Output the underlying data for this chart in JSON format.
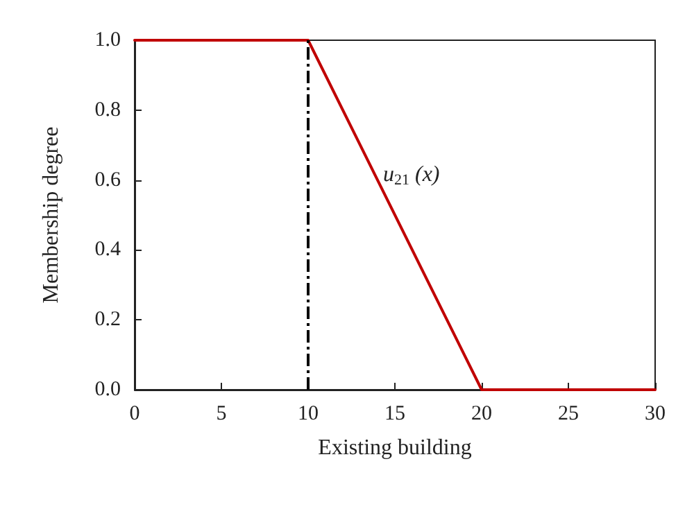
{
  "chart_data": {
    "type": "line",
    "xlabel": "Existing building",
    "ylabel": "Membership degree",
    "x": [
      0,
      10,
      20,
      30
    ],
    "series": [
      {
        "color": "#c00000",
        "values": [
          1,
          1,
          0,
          0
        ]
      }
    ],
    "xlim": [
      0,
      30
    ],
    "xticks": [
      0,
      5,
      10,
      15,
      20,
      25,
      30
    ],
    "ylim": [
      0,
      1
    ],
    "yticks": [
      {
        "value": 0,
        "label": "0.0"
      },
      {
        "value": 0.2,
        "label": "0.2"
      },
      {
        "value": 0.4,
        "label": "0.4"
      },
      {
        "value": 0.6,
        "label": "0.6"
      },
      {
        "value": 0.8,
        "label": "0.8"
      },
      {
        "value": 1,
        "label": "1.0"
      }
    ],
    "ref_lines": [
      {
        "axis": "x",
        "value": 10,
        "color": "#000000",
        "line_style": "dashed"
      }
    ],
    "annotations": [
      "u$_{21}$ (x)"
    ],
    "grid": false,
    "marker": "none",
    "line_style": "solid"
  }
}
